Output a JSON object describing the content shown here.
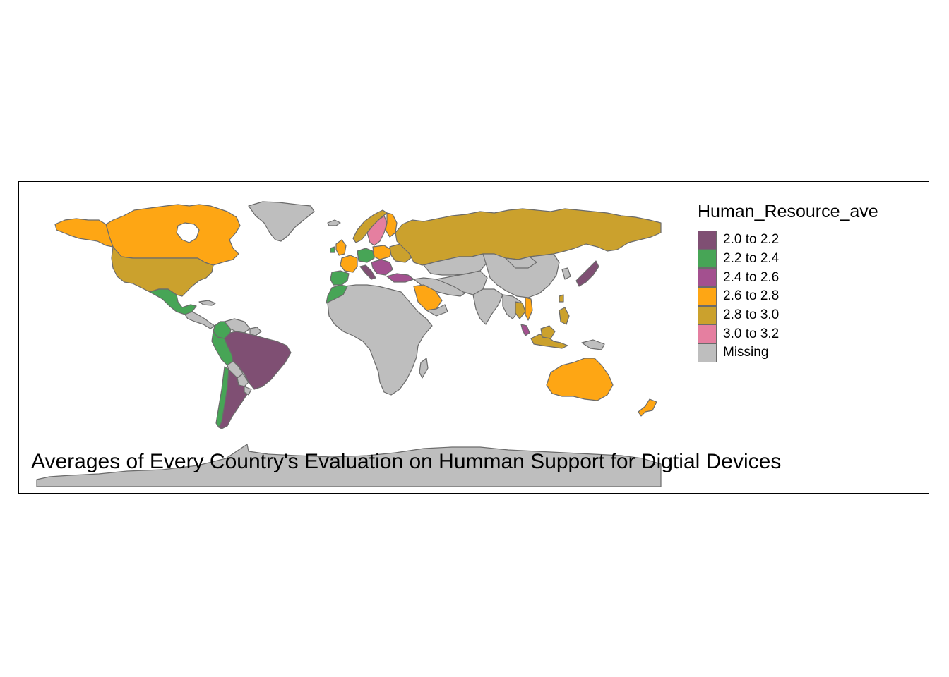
{
  "map": {
    "title": "Averages of Every Country's Evaluation on Humman Support for Digtial Devices",
    "legend": {
      "title": "Human_Resource_ave",
      "items": [
        {
          "label": "2.0 to 2.2",
          "color": "#7f4f73"
        },
        {
          "label": "2.2 to 2.4",
          "color": "#47a556"
        },
        {
          "label": "2.4 to 2.6",
          "color": "#a3508f"
        },
        {
          "label": "2.6 to 2.8",
          "color": "#fea614"
        },
        {
          "label": "2.8 to 3.0",
          "color": "#cba12d"
        },
        {
          "label": "3.0 to 3.2",
          "color": "#e57fa0"
        },
        {
          "label": "Missing",
          "color": "#bebebe"
        }
      ]
    },
    "border_color": "#6b6b6b"
  }
}
